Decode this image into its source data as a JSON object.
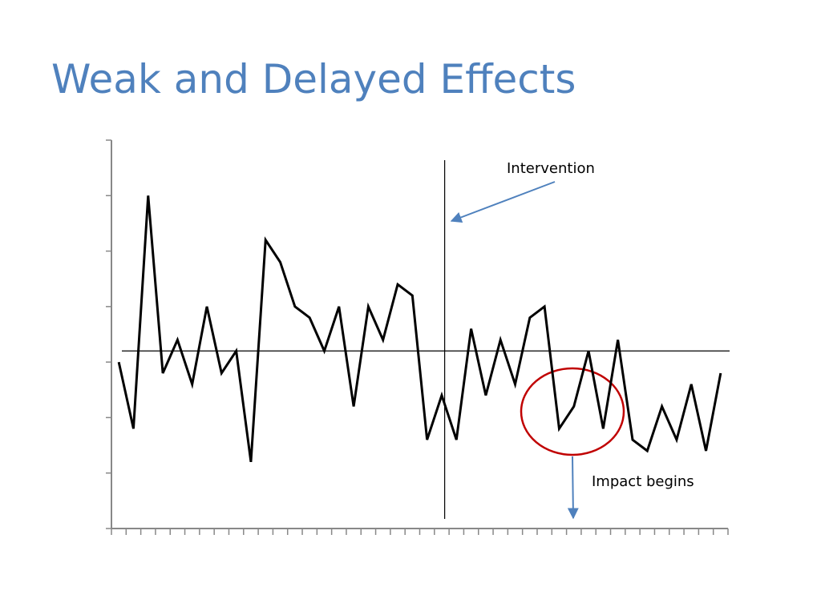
{
  "chart_data": {
    "type": "line",
    "title": "Weak and Delayed Effects",
    "x": [
      1,
      2,
      3,
      4,
      5,
      6,
      7,
      8,
      9,
      10,
      11,
      12,
      13,
      14,
      15,
      16,
      17,
      18,
      19,
      20,
      21,
      22,
      23,
      24,
      25,
      26,
      27,
      28,
      29,
      30,
      31,
      32,
      33,
      34,
      35,
      36,
      37,
      38,
      39,
      40,
      41,
      42
    ],
    "values": [
      3.0,
      1.8,
      6.0,
      2.8,
      3.4,
      2.6,
      4.0,
      2.8,
      3.2,
      1.2,
      5.2,
      4.8,
      4.0,
      3.8,
      3.2,
      4.0,
      2.2,
      4.0,
      3.4,
      4.4,
      4.2,
      1.6,
      2.4,
      1.6,
      3.6,
      2.4,
      3.4,
      2.6,
      3.8,
      4.0,
      1.8,
      2.2,
      3.2,
      1.8,
      3.4,
      1.6,
      1.4,
      2.2,
      1.6,
      2.6,
      1.4,
      2.8
    ],
    "color": "#000000",
    "xlim": [
      0.5,
      42.5
    ],
    "xticks": [
      0.5,
      1.5,
      2.5,
      3.5,
      4.5,
      5.5,
      6.5,
      7.5,
      8.5,
      9.5,
      10.5,
      11.5,
      12.5,
      13.5,
      14.5,
      15.5,
      16.5,
      17.5,
      18.5,
      19.5,
      20.5,
      21.5,
      22.5,
      23.5,
      24.5,
      25.5,
      26.5,
      27.5,
      28.5,
      29.5,
      30.5,
      31.5,
      32.5,
      33.5,
      34.5,
      35.5,
      36.5,
      37.5,
      38.5,
      39.5,
      40.5,
      41.5,
      42.5
    ],
    "ylim": [
      0,
      7
    ],
    "yticks": [
      0,
      1,
      2,
      3,
      4,
      5,
      6,
      7
    ],
    "reference_line": 3.2,
    "intervention_x": 23.2,
    "annotations": [
      "Intervention",
      "Impact begins"
    ]
  }
}
